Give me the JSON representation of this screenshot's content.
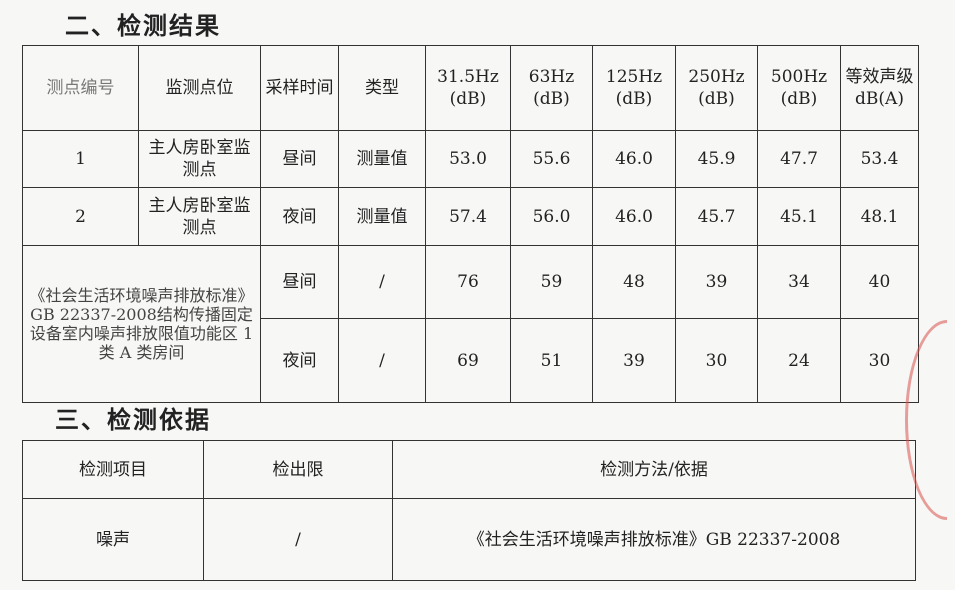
{
  "section2": {
    "title": "二、检测结果",
    "headers": [
      "测点编号",
      "监测点位",
      "采样时间",
      "类型",
      "31.5Hz (dB)",
      "63Hz (dB)",
      "125Hz (dB)",
      "250Hz (dB)",
      "500Hz (dB)",
      "等效声级 dB(A)"
    ],
    "rows": [
      {
        "id": "1",
        "location": "主人房卧室监测点",
        "time": "昼间",
        "type": "测量值",
        "values": [
          "53.0",
          "55.6",
          "46.0",
          "45.9",
          "47.7",
          "53.4"
        ]
      },
      {
        "id": "2",
        "location": "主人房卧室监测点",
        "time": "夜间",
        "type": "测量值",
        "values": [
          "57.4",
          "56.0",
          "46.0",
          "45.7",
          "45.1",
          "48.1"
        ]
      }
    ],
    "standard": {
      "label": "《社会生活环境噪声排放标准》GB 22337-2008结构传播固定设备室内噪声排放限值功能区 1 类 A 类房间",
      "rows": [
        {
          "time": "昼间",
          "type": "/",
          "values": [
            "76",
            "59",
            "48",
            "39",
            "34",
            "40"
          ]
        },
        {
          "time": "夜间",
          "type": "/",
          "values": [
            "69",
            "51",
            "39",
            "30",
            "24",
            "30"
          ]
        }
      ]
    }
  },
  "section3": {
    "title": "三、检测依据",
    "headers": [
      "检测项目",
      "检出限",
      "检测方法/依据"
    ],
    "rows": [
      {
        "item": "噪声",
        "limit": "/",
        "method": "《社会生活环境噪声排放标准》GB 22337-2008"
      }
    ]
  },
  "colors": {
    "stamp": "#d9534f"
  }
}
